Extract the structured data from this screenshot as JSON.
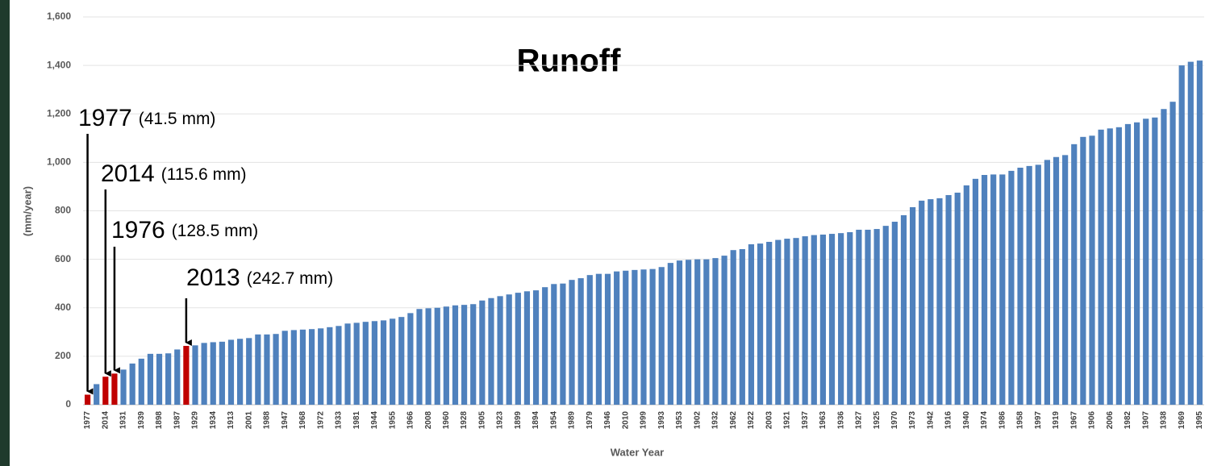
{
  "chart_data": {
    "type": "bar",
    "title": "Runoff",
    "x_label": "Water Year",
    "y_label": "(mm/year)",
    "categories": [
      "1977",
      null,
      "2014",
      null,
      "1931",
      null,
      "1939",
      null,
      "1898",
      null,
      "1987",
      null,
      "1929",
      null,
      "1934",
      null,
      "1913",
      null,
      "2001",
      null,
      "1988",
      null,
      "1947",
      null,
      "1968",
      null,
      "1972",
      null,
      "1933",
      null,
      "1981",
      null,
      "1944",
      null,
      "1955",
      null,
      "1966",
      null,
      "2008",
      null,
      "1960",
      null,
      "1928",
      null,
      "1905",
      null,
      "1923",
      null,
      "1899",
      null,
      "1894",
      null,
      "1954",
      null,
      "1989",
      null,
      "1979",
      null,
      "1946",
      null,
      "2010",
      null,
      "1999",
      null,
      "1993",
      null,
      "1953",
      null,
      "1902",
      null,
      "1932",
      null,
      "1962",
      null,
      "1922",
      null,
      "2003",
      null,
      "1921",
      null,
      "1937",
      null,
      "1963",
      null,
      "1936",
      null,
      "1927",
      null,
      "1925",
      null,
      "1970",
      null,
      "1973",
      null,
      "1942",
      null,
      "1916",
      null,
      "1940",
      null,
      "1974",
      null,
      "1986",
      null,
      "1958",
      null,
      "1997",
      null,
      "1919",
      null,
      "1967",
      null,
      "1906",
      null,
      "2006",
      null,
      "1982",
      null,
      "1907",
      null,
      "1938",
      null,
      "1969",
      null,
      "1995"
    ],
    "values": [
      41.5,
      85,
      115.6,
      128.5,
      145,
      170,
      190,
      210,
      210,
      212,
      228,
      242.7,
      245,
      255,
      258,
      260,
      268,
      272,
      275,
      290,
      290,
      292,
      305,
      308,
      310,
      312,
      315,
      320,
      325,
      335,
      338,
      342,
      345,
      348,
      355,
      362,
      378,
      395,
      398,
      400,
      405,
      410,
      412,
      415,
      430,
      440,
      448,
      455,
      462,
      468,
      472,
      485,
      498,
      500,
      515,
      522,
      535,
      540,
      540,
      550,
      553,
      556,
      558,
      560,
      568,
      585,
      595,
      598,
      600,
      600,
      605,
      615,
      638,
      642,
      662,
      665,
      672,
      680,
      685,
      688,
      695,
      700,
      702,
      705,
      708,
      712,
      722,
      722,
      725,
      738,
      755,
      782,
      815,
      842,
      848,
      852,
      865,
      875,
      905,
      932,
      948,
      950,
      950,
      965,
      978,
      985,
      990,
      1010,
      1022,
      1030,
      1075,
      1105,
      1110,
      1135,
      1140,
      1145,
      1158,
      1165,
      1180,
      1185,
      1220,
      1250,
      1400,
      1415,
      1420
    ],
    "color": "#4f81bd",
    "highlight_color": "#c00000",
    "highlighted": [
      0,
      2,
      3,
      11
    ],
    "ylim": [
      0,
      1600
    ],
    "yticks": [
      0,
      200,
      400,
      600,
      800,
      {
        "value": 1000,
        "label": "1,000"
      },
      {
        "value": 1200,
        "label": "1,200"
      },
      {
        "value": 1400,
        "label": "1,400"
      },
      {
        "value": 1600,
        "label": "1,600"
      }
    ],
    "grid": true,
    "annotations": [
      {
        "label": "1977",
        "detail": "(41.5 mm)"
      },
      {
        "label": "2014",
        "detail": "(115.6 mm)"
      },
      {
        "label": "1976",
        "detail": "(128.5 mm)"
      },
      {
        "label": "2013",
        "detail": "(242.7 mm)"
      }
    ]
  }
}
